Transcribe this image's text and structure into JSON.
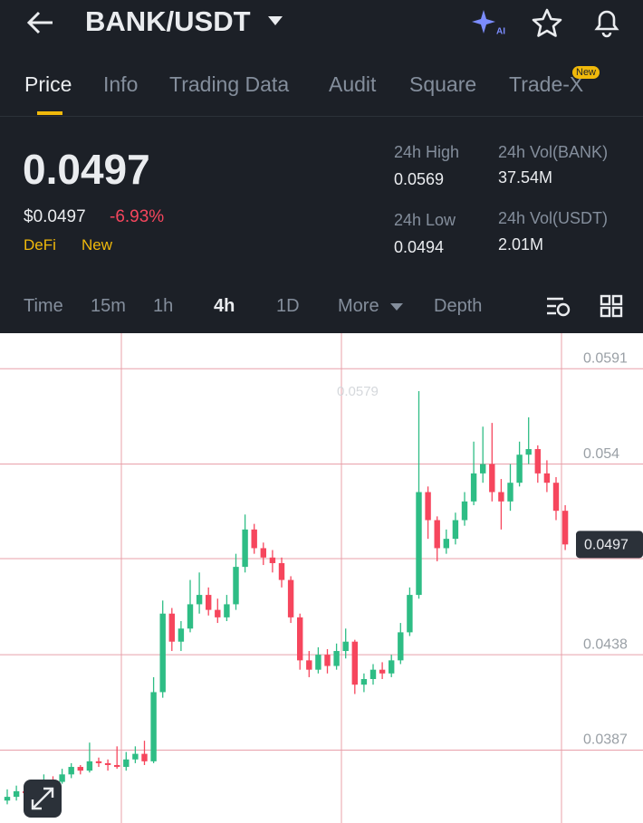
{
  "header": {
    "pair": "BANK/USDT",
    "tabs": [
      "Price",
      "Info",
      "Trading Data",
      "Audit",
      "Square",
      "Trade-X"
    ],
    "new_badge": "New"
  },
  "ticker": {
    "price": "0.0497",
    "usd_price": "$0.0497",
    "change": "-6.93%",
    "tags": [
      "DeFi",
      "New"
    ],
    "stats": [
      {
        "label": "24h High",
        "value": "0.0569"
      },
      {
        "label": "24h Vol(BANK)",
        "value": "37.54M"
      },
      {
        "label": "24h Low",
        "value": "0.0494"
      },
      {
        "label": "24h Vol(USDT)",
        "value": "2.01M"
      }
    ]
  },
  "intervals": [
    "Time",
    "15m",
    "1h",
    "4h",
    "1D",
    "More",
    "Depth"
  ],
  "chart_data": {
    "type": "candlestick",
    "up_color": "#2ebd85",
    "down_color": "#f6465d",
    "ylim": [
      0.0348,
      0.061
    ],
    "yticks": [
      0.0591,
      0.054,
      0.0438,
      0.0387
    ],
    "last_price": 0.0497,
    "high_marker": "0.0579",
    "candles": [
      [
        0.036,
        0.0366,
        0.0358,
        0.0362
      ],
      [
        0.0362,
        0.0368,
        0.036,
        0.0365
      ],
      [
        0.0365,
        0.0367,
        0.0361,
        0.0364
      ],
      [
        0.0364,
        0.037,
        0.0362,
        0.0368
      ],
      [
        0.0368,
        0.0374,
        0.0366,
        0.0371
      ],
      [
        0.0371,
        0.0373,
        0.0368,
        0.037
      ],
      [
        0.037,
        0.0377,
        0.0369,
        0.0374
      ],
      [
        0.0374,
        0.038,
        0.0372,
        0.0378
      ],
      [
        0.0378,
        0.0379,
        0.0374,
        0.0376
      ],
      [
        0.0376,
        0.0391,
        0.0375,
        0.0381
      ],
      [
        0.0381,
        0.0383,
        0.0378,
        0.038
      ],
      [
        0.038,
        0.0382,
        0.0376,
        0.0379
      ],
      [
        0.0379,
        0.0389,
        0.0377,
        0.0378
      ],
      [
        0.0378,
        0.0386,
        0.0376,
        0.0382
      ],
      [
        0.0382,
        0.0389,
        0.038,
        0.0385
      ],
      [
        0.0385,
        0.0392,
        0.0379,
        0.0381
      ],
      [
        0.0381,
        0.0426,
        0.038,
        0.0418
      ],
      [
        0.0418,
        0.0467,
        0.0415,
        0.046
      ],
      [
        0.046,
        0.0463,
        0.044,
        0.0445
      ],
      [
        0.0445,
        0.0456,
        0.044,
        0.0452
      ],
      [
        0.0452,
        0.0478,
        0.045,
        0.0465
      ],
      [
        0.0465,
        0.0482,
        0.046,
        0.047
      ],
      [
        0.047,
        0.0474,
        0.0459,
        0.0462
      ],
      [
        0.0462,
        0.0468,
        0.0455,
        0.0458
      ],
      [
        0.0458,
        0.047,
        0.0456,
        0.0465
      ],
      [
        0.0465,
        0.0492,
        0.0462,
        0.0485
      ],
      [
        0.0485,
        0.0513,
        0.0482,
        0.0505
      ],
      [
        0.0505,
        0.0508,
        0.0492,
        0.0495
      ],
      [
        0.0495,
        0.0498,
        0.0486,
        0.049
      ],
      [
        0.049,
        0.0494,
        0.0482,
        0.0487
      ],
      [
        0.0487,
        0.049,
        0.0474,
        0.0478
      ],
      [
        0.0478,
        0.048,
        0.0455,
        0.0458
      ],
      [
        0.0458,
        0.046,
        0.043,
        0.0435
      ],
      [
        0.0435,
        0.044,
        0.0426,
        0.043
      ],
      [
        0.043,
        0.0442,
        0.0428,
        0.0438
      ],
      [
        0.0438,
        0.0441,
        0.0428,
        0.0432
      ],
      [
        0.0432,
        0.0444,
        0.043,
        0.044
      ],
      [
        0.044,
        0.0452,
        0.0436,
        0.0445
      ],
      [
        0.0445,
        0.0446,
        0.0417,
        0.0422
      ],
      [
        0.0422,
        0.0428,
        0.0418,
        0.0425
      ],
      [
        0.0425,
        0.0433,
        0.0422,
        0.043
      ],
      [
        0.043,
        0.0434,
        0.0425,
        0.0428
      ],
      [
        0.0428,
        0.0438,
        0.0426,
        0.0435
      ],
      [
        0.0435,
        0.0455,
        0.0433,
        0.045
      ],
      [
        0.045,
        0.0474,
        0.0448,
        0.047
      ],
      [
        0.047,
        0.0579,
        0.0468,
        0.0525
      ],
      [
        0.0525,
        0.0528,
        0.05,
        0.051
      ],
      [
        0.051,
        0.0512,
        0.0488,
        0.0495
      ],
      [
        0.0495,
        0.0505,
        0.0492,
        0.05
      ],
      [
        0.05,
        0.0514,
        0.0497,
        0.051
      ],
      [
        0.051,
        0.0525,
        0.0507,
        0.052
      ],
      [
        0.052,
        0.0552,
        0.0518,
        0.0535
      ],
      [
        0.0535,
        0.056,
        0.053,
        0.054
      ],
      [
        0.054,
        0.0562,
        0.052,
        0.0525
      ],
      [
        0.0525,
        0.0532,
        0.0505,
        0.052
      ],
      [
        0.052,
        0.054,
        0.0515,
        0.053
      ],
      [
        0.053,
        0.0552,
        0.0528,
        0.0545
      ],
      [
        0.0545,
        0.0565,
        0.054,
        0.0548
      ],
      [
        0.0548,
        0.055,
        0.053,
        0.0535
      ],
      [
        0.0535,
        0.0542,
        0.0525,
        0.053
      ],
      [
        0.053,
        0.0533,
        0.051,
        0.0515
      ],
      [
        0.0515,
        0.0518,
        0.0494,
        0.0497
      ]
    ]
  }
}
